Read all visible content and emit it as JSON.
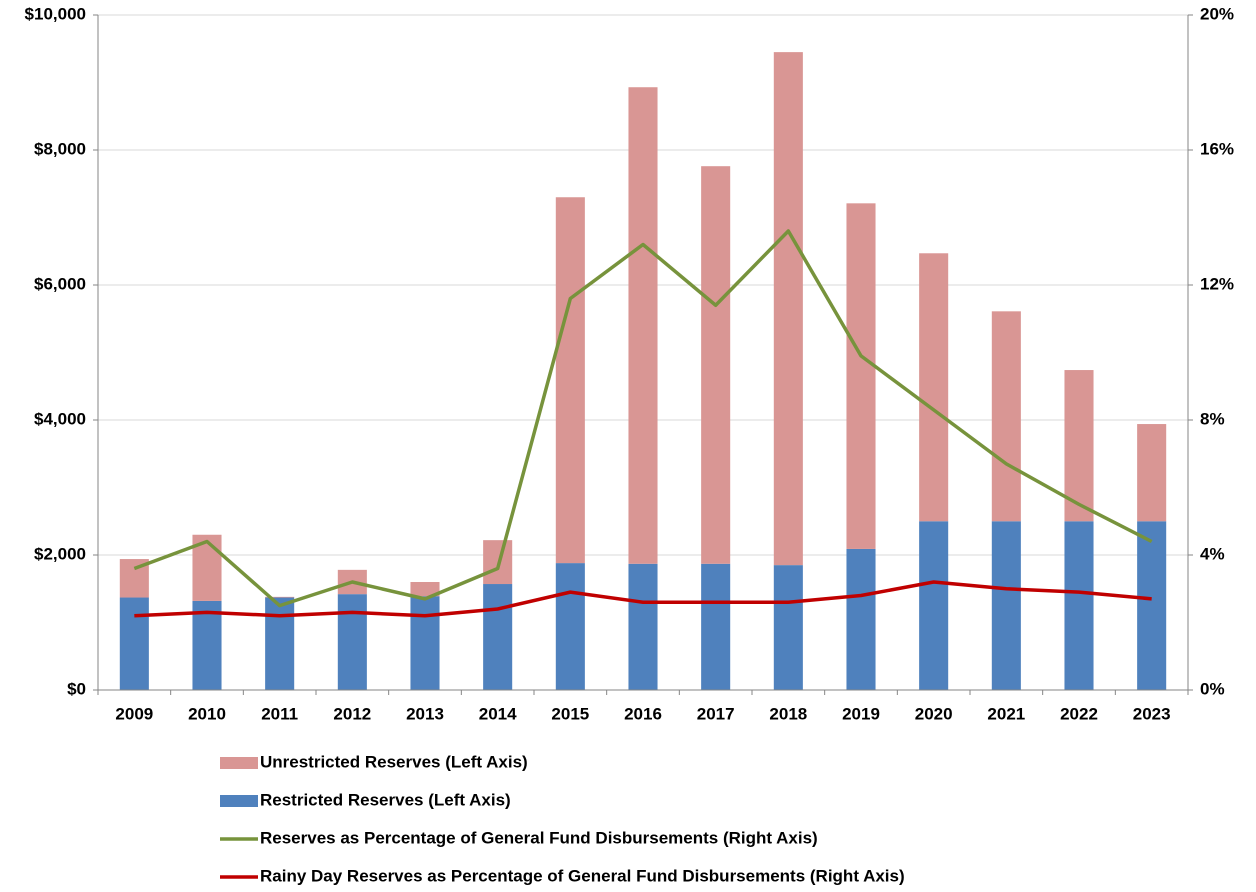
{
  "chart_data": {
    "type": "bar",
    "categories": [
      "2009",
      "2010",
      "2011",
      "2012",
      "2013",
      "2014",
      "2015",
      "2016",
      "2017",
      "2018",
      "2019",
      "2020",
      "2021",
      "2022",
      "2023"
    ],
    "series": [
      {
        "name": "Unrestricted Reserves (Left Axis)",
        "type": "bar",
        "color": "#d99694",
        "values": [
          570,
          980,
          10,
          360,
          210,
          650,
          5420,
          7060,
          5890,
          7600,
          5120,
          3970,
          3110,
          2240,
          1440
        ]
      },
      {
        "name": "Restricted Reserves (Left Axis)",
        "type": "bar",
        "color": "#4f81bd",
        "values": [
          1370,
          1320,
          1370,
          1420,
          1390,
          1570,
          1880,
          1870,
          1870,
          1850,
          2090,
          2500,
          2500,
          2500,
          2500
        ]
      },
      {
        "name": "Reserves as Percentage of General Fund Disbursements (Right Axis)",
        "type": "line",
        "axis": "y2",
        "color": "#77933c",
        "values": [
          3.6,
          4.4,
          2.5,
          3.2,
          2.7,
          3.6,
          11.6,
          13.2,
          11.4,
          13.6,
          9.9,
          8.3,
          6.7,
          5.5,
          4.4
        ]
      },
      {
        "name": "Rainy Day Reserves as Percentage of General Fund Disbursements (Right Axis)",
        "type": "line",
        "axis": "y2",
        "color": "#c00000",
        "values": [
          2.2,
          2.3,
          2.2,
          2.3,
          2.2,
          2.4,
          2.9,
          2.6,
          2.6,
          2.6,
          2.8,
          3.2,
          3.0,
          2.9,
          2.7
        ]
      }
    ],
    "ylim": [
      0,
      10000
    ],
    "yticks": [
      {
        "value": 0,
        "label": "$0"
      },
      {
        "value": 2000,
        "label": "$2,000"
      },
      {
        "value": 4000,
        "label": "$4,000"
      },
      {
        "value": 6000,
        "label": "$6,000"
      },
      {
        "value": 8000,
        "label": "$8,000"
      },
      {
        "value": 10000,
        "label": "$10,000"
      }
    ],
    "y2lim": [
      0,
      20
    ],
    "y2ticks": [
      {
        "value": 0,
        "label": "0%"
      },
      {
        "value": 4,
        "label": "4%"
      },
      {
        "value": 8,
        "label": "8%"
      },
      {
        "value": 12,
        "label": "12%"
      },
      {
        "value": 16,
        "label": "16%"
      },
      {
        "value": 20,
        "label": "20%"
      }
    ],
    "grid": true,
    "stacked": true
  }
}
